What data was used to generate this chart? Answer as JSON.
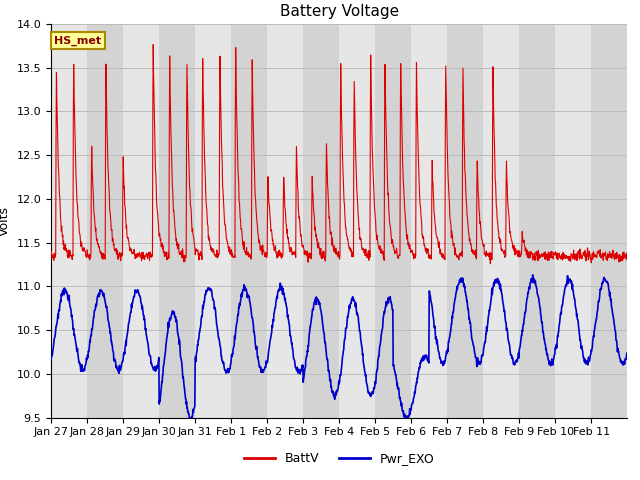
{
  "title": "Battery Voltage",
  "ylabel": "Volts",
  "xlabel": "",
  "ylim": [
    9.5,
    14.0
  ],
  "yticks": [
    9.5,
    10.0,
    10.5,
    11.0,
    11.5,
    12.0,
    12.5,
    13.0,
    13.5,
    14.0
  ],
  "xtick_labels": [
    "Jan 27",
    "Jan 28",
    "Jan 29",
    "Jan 30",
    "Jan 31",
    "Feb 1",
    "Feb 2",
    "Feb 3",
    "Feb 4",
    "Feb 5",
    "Feb 6",
    "Feb 7",
    "Feb 8",
    "Feb 9",
    "Feb 10",
    "Feb 11"
  ],
  "batt_color": "#dd0000",
  "pwr_color": "#0000cc",
  "legend_labels": [
    "BattV",
    "Pwr_EXO"
  ],
  "annotation_text": "HS_met",
  "grid_color": "#bbbbbb",
  "bg_color": "#d3d3d3",
  "alt_band_color": "#e8e8e8",
  "title_fontsize": 11,
  "axis_fontsize": 9,
  "tick_fontsize": 8
}
